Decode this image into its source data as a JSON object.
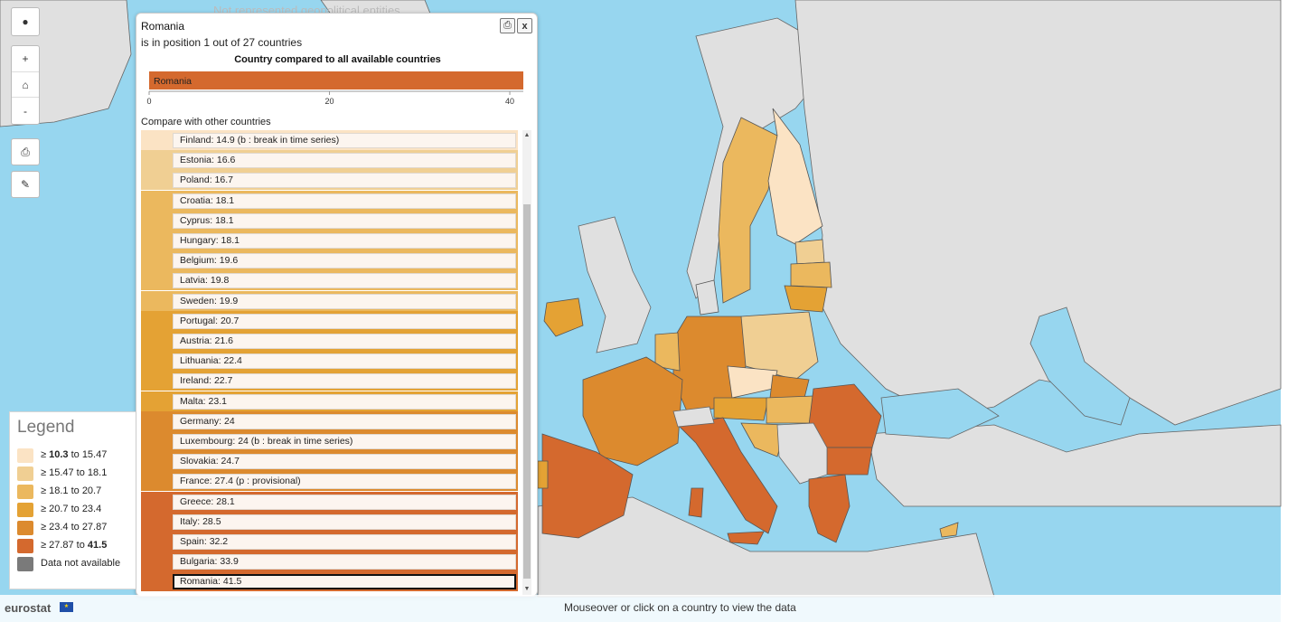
{
  "background_title": "Not represented geopolitical entities",
  "popup": {
    "title": "Romania",
    "subtitle": "is in position 1 out of 27 countries",
    "chart_title": "Country compared to all available countries",
    "compare_label": "Compare with other countries",
    "print_icon": "print-icon",
    "close_label": "x"
  },
  "chart_data": {
    "type": "bar",
    "title": "Country compared to all available countries",
    "categories": [
      "Romania"
    ],
    "values": [
      41.5
    ],
    "xlim": [
      0,
      41.5
    ],
    "xticks": [
      "0",
      "20",
      "40"
    ],
    "bar_color": "#d4692e"
  },
  "countries": [
    {
      "label": "Finland: 14.9 (b : break in time series)",
      "color": "#fbe3c4"
    },
    {
      "label": "Estonia: 16.6",
      "color": "#f0cf93"
    },
    {
      "label": "Poland: 16.7",
      "color": "#f0cf93"
    },
    {
      "label": "Croatia: 18.1",
      "color": "#ebb85e"
    },
    {
      "label": "Cyprus: 18.1",
      "color": "#ebb85e"
    },
    {
      "label": "Hungary: 18.1",
      "color": "#ebb85e"
    },
    {
      "label": "Belgium: 19.6",
      "color": "#ebb85e"
    },
    {
      "label": "Latvia: 19.8",
      "color": "#ebb85e"
    },
    {
      "label": "Sweden: 19.9",
      "color": "#ebb85e"
    },
    {
      "label": "Portugal: 20.7",
      "color": "#e4a234"
    },
    {
      "label": "Austria: 21.6",
      "color": "#e4a234"
    },
    {
      "label": "Lithuania: 22.4",
      "color": "#e4a234"
    },
    {
      "label": "Ireland: 22.7",
      "color": "#e4a234"
    },
    {
      "label": "Malta: 23.1",
      "color": "#e4a234"
    },
    {
      "label": "Germany: 24",
      "color": "#dc8a2e"
    },
    {
      "label": "Luxembourg: 24 (b : break in time series)",
      "color": "#dc8a2e"
    },
    {
      "label": "Slovakia: 24.7",
      "color": "#dc8a2e"
    },
    {
      "label": "France: 27.4 (p : provisional)",
      "color": "#dc8a2e"
    },
    {
      "label": "Greece: 28.1",
      "color": "#d4692e"
    },
    {
      "label": "Italy: 28.5",
      "color": "#d4692e"
    },
    {
      "label": "Spain: 32.2",
      "color": "#d4692e"
    },
    {
      "label": "Bulgaria: 33.9",
      "color": "#d4692e"
    },
    {
      "label": "Romania: 41.5",
      "color": "#d4692e",
      "selected": true
    }
  ],
  "legend": {
    "title": "Legend",
    "items": [
      {
        "prefix": "≥ ",
        "low": "10.3",
        "mid": " to ",
        "high": "15.47",
        "low_bold": true,
        "high_bold": false,
        "color": "#fbe3c4"
      },
      {
        "prefix": "≥ ",
        "low": "15.47",
        "mid": " to ",
        "high": "18.1",
        "low_bold": false,
        "high_bold": false,
        "color": "#f0cf93"
      },
      {
        "prefix": "≥ ",
        "low": "18.1",
        "mid": " to ",
        "high": "20.7",
        "low_bold": false,
        "high_bold": false,
        "color": "#ebb85e"
      },
      {
        "prefix": "≥ ",
        "low": "20.7",
        "mid": " to ",
        "high": "23.4",
        "low_bold": false,
        "high_bold": false,
        "color": "#e4a234"
      },
      {
        "prefix": "≥ ",
        "low": "23.4",
        "mid": " to ",
        "high": "27.87",
        "low_bold": false,
        "high_bold": false,
        "color": "#dc8a2e"
      },
      {
        "prefix": "≥ ",
        "low": "27.87",
        "mid": " to ",
        "high": "41.5",
        "low_bold": false,
        "high_bold": true,
        "color": "#d4692e"
      }
    ],
    "na_label": "Data not available",
    "na_color": "#7a7a7a"
  },
  "controls": {
    "globe_icon": "globe-icon",
    "zoom_in": "+",
    "home_icon": "home-icon",
    "zoom_out": "-",
    "print_icon": "print-icon",
    "brush_icon": "brush-icon"
  },
  "footer": {
    "logo": "eurostat",
    "hint": "Mouseover or click on a country to view the data"
  },
  "colors": {
    "sea": "#97d6ef",
    "land_no_data": "#e0e0e0",
    "border": "#555555"
  }
}
